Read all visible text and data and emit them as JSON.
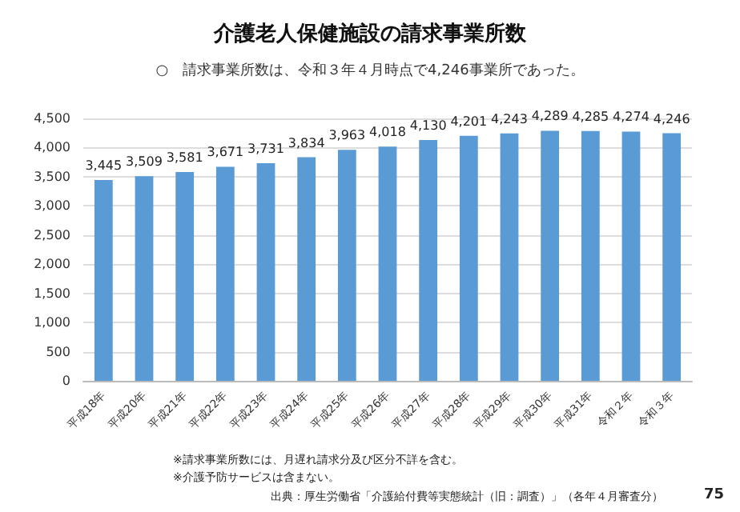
{
  "chart_data": {
    "type": "bar",
    "title": "介護老人保健施設の請求事業所数",
    "subtitle": "○　請求事業所数は、令和３年４月時点で4,246事業所であった。",
    "categories": [
      "平成18年",
      "平成20年",
      "平成21年",
      "平成22年",
      "平成23年",
      "平成24年",
      "平成25年",
      "平成26年",
      "平成27年",
      "平成28年",
      "平成29年",
      "平成30年",
      "平成31年",
      "令和２年",
      "令和３年"
    ],
    "values": [
      3445,
      3509,
      3581,
      3671,
      3731,
      3834,
      3963,
      4018,
      4130,
      4201,
      4243,
      4289,
      4285,
      4274,
      4246
    ],
    "value_labels": [
      "3,445",
      "3,509",
      "3,581",
      "3,671",
      "3,731",
      "3,834",
      "3,963",
      "4,018",
      "4,130",
      "4,201",
      "4,243",
      "4,289",
      "4,285",
      "4,274",
      "4,246"
    ],
    "color": "#5b9bd5",
    "ylim": [
      0,
      4500
    ],
    "yticks": [
      0,
      500,
      {
        "value": 1000,
        "label": "1,000"
      },
      {
        "value": 1500,
        "label": "1,500"
      },
      {
        "value": 2000,
        "label": "2,000"
      },
      {
        "value": 2500,
        "label": "2,500"
      },
      {
        "value": 3000,
        "label": "3,000"
      },
      {
        "value": 3500,
        "label": "3,500"
      },
      {
        "value": 4000,
        "label": "4,000"
      },
      {
        "value": 4500,
        "label": "4,500"
      }
    ],
    "grid": "y",
    "annotations": [
      "※請求事業所数には、月遅れ請求分及び区分不詳を含む。",
      "※介護予防サービスは含まない。",
      "出典：厚生労働省「介護給付費等実態統計（旧：調査）」（各年４月審査分）",
      "75"
    ]
  }
}
